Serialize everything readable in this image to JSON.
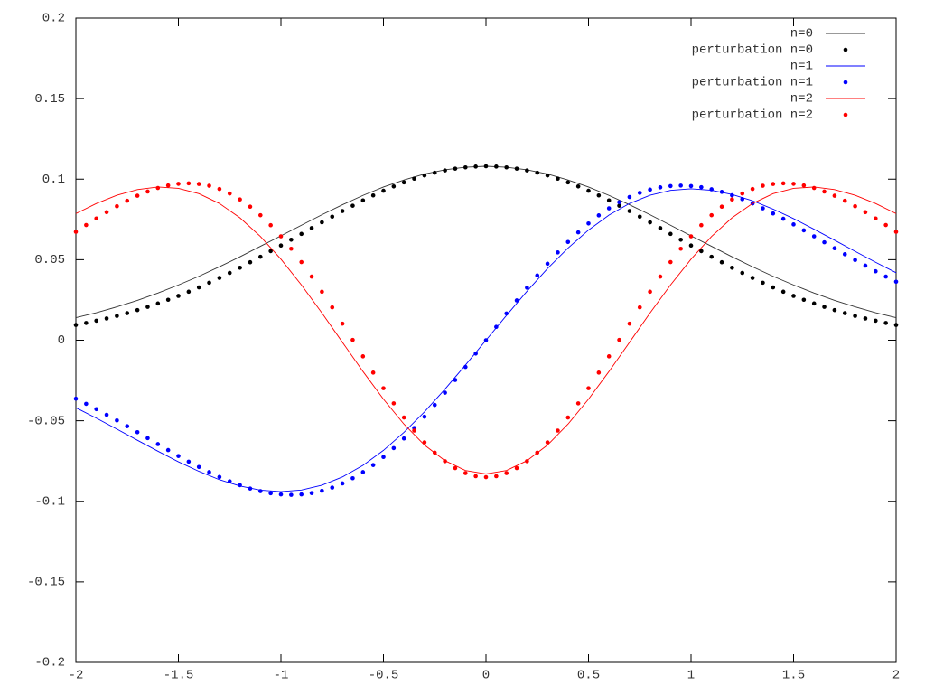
{
  "chart_data": {
    "type": "line",
    "xlim": [
      -2,
      2
    ],
    "ylim": [
      -0.2,
      0.2
    ],
    "xticks": [
      -2,
      -1.5,
      -1,
      -0.5,
      0,
      0.5,
      1,
      1.5,
      2
    ],
    "yticks": [
      -0.2,
      -0.15,
      -0.1,
      -0.05,
      0,
      0.05,
      0.1,
      0.15,
      0.2
    ],
    "grid": false,
    "legend": "top right",
    "series": [
      {
        "name": "n=0",
        "color": "#333333",
        "style": "line",
        "x": [
          -2,
          -1.9,
          -1.8,
          -1.7,
          -1.6,
          -1.5,
          -1.4,
          -1.3,
          -1.2,
          -1.1,
          -1,
          -0.9,
          -0.8,
          -0.7,
          -0.6,
          -0.5,
          -0.4,
          -0.3,
          -0.2,
          -0.1,
          0,
          0.1,
          0.2,
          0.3,
          0.4,
          0.5,
          0.6,
          0.7,
          0.8,
          0.9,
          1,
          1.1,
          1.2,
          1.3,
          1.4,
          1.5,
          1.6,
          1.7,
          1.8,
          1.9,
          2
        ],
        "values": [
          0.014,
          0.0171,
          0.0207,
          0.0247,
          0.0293,
          0.0343,
          0.0397,
          0.0456,
          0.0518,
          0.0583,
          0.0648,
          0.0714,
          0.0779,
          0.0841,
          0.0899,
          0.0951,
          0.0995,
          0.1032,
          0.1058,
          0.1074,
          0.108,
          0.1074,
          0.1058,
          0.1032,
          0.0995,
          0.0951,
          0.0899,
          0.0841,
          0.0779,
          0.0714,
          0.0648,
          0.0583,
          0.0518,
          0.0456,
          0.0397,
          0.0343,
          0.0293,
          0.0247,
          0.0207,
          0.0171,
          0.014
        ]
      },
      {
        "name": "perturbation n=0",
        "color": "#000000",
        "style": "points",
        "x": [
          -2,
          -1.95,
          -1.9,
          -1.85,
          -1.8,
          -1.75,
          -1.7,
          -1.65,
          -1.6,
          -1.55,
          -1.5,
          -1.45,
          -1.4,
          -1.35,
          -1.3,
          -1.25,
          -1.2,
          -1.15,
          -1.1,
          -1.05,
          -1,
          -0.95,
          -0.9,
          -0.85,
          -0.8,
          -0.75,
          -0.7,
          -0.65,
          -0.6,
          -0.55,
          -0.5,
          -0.45,
          -0.4,
          -0.35,
          -0.3,
          -0.25,
          -0.2,
          -0.15,
          -0.1,
          -0.05,
          0,
          0.05,
          0.1,
          0.15,
          0.2,
          0.25,
          0.3,
          0.35,
          0.4,
          0.45,
          0.5,
          0.55,
          0.6,
          0.65,
          0.7,
          0.75,
          0.8,
          0.85,
          0.9,
          0.95,
          1,
          1.05,
          1.1,
          1.15,
          1.2,
          1.25,
          1.3,
          1.35,
          1.4,
          1.45,
          1.5,
          1.55,
          1.6,
          1.65,
          1.7,
          1.75,
          1.8,
          1.85,
          1.9,
          1.95,
          2
        ],
        "values": [
          0.0095,
          0.0107,
          0.0121,
          0.0135,
          0.0151,
          0.0168,
          0.0187,
          0.0207,
          0.0228,
          0.0251,
          0.0275,
          0.0301,
          0.0328,
          0.0357,
          0.0387,
          0.0418,
          0.045,
          0.0484,
          0.0518,
          0.0553,
          0.0588,
          0.0624,
          0.066,
          0.0696,
          0.0732,
          0.0767,
          0.0802,
          0.0835,
          0.0868,
          0.0899,
          0.0928,
          0.0955,
          0.098,
          0.1003,
          0.1023,
          0.104,
          0.1054,
          0.1065,
          0.1073,
          0.1078,
          0.108,
          0.1078,
          0.1073,
          0.1065,
          0.1054,
          0.104,
          0.1023,
          0.1003,
          0.098,
          0.0955,
          0.0928,
          0.0899,
          0.0868,
          0.0835,
          0.0802,
          0.0767,
          0.0732,
          0.0696,
          0.066,
          0.0624,
          0.0588,
          0.0553,
          0.0518,
          0.0484,
          0.045,
          0.0418,
          0.0387,
          0.0357,
          0.0328,
          0.0301,
          0.0275,
          0.0251,
          0.0228,
          0.0207,
          0.0187,
          0.0168,
          0.0151,
          0.0135,
          0.0121,
          0.0107,
          0.0095
        ]
      },
      {
        "name": "n=1",
        "color": "#0000ff",
        "style": "line",
        "x": [
          -2,
          -1.9,
          -1.8,
          -1.7,
          -1.6,
          -1.5,
          -1.4,
          -1.3,
          -1.2,
          -1.1,
          -1,
          -0.9,
          -0.8,
          -0.7,
          -0.6,
          -0.5,
          -0.4,
          -0.3,
          -0.2,
          -0.1,
          0,
          0.1,
          0.2,
          0.3,
          0.4,
          0.5,
          0.6,
          0.7,
          0.8,
          0.9,
          1,
          1.1,
          1.2,
          1.3,
          1.4,
          1.5,
          1.6,
          1.7,
          1.8,
          1.9,
          2
        ],
        "values": [
          -0.0419,
          -0.0484,
          -0.0552,
          -0.0621,
          -0.0689,
          -0.0755,
          -0.0814,
          -0.0866,
          -0.0905,
          -0.0931,
          -0.094,
          -0.093,
          -0.09,
          -0.0849,
          -0.0777,
          -0.0684,
          -0.0572,
          -0.0445,
          -0.0304,
          -0.0154,
          0,
          0.0154,
          0.0304,
          0.0445,
          0.0572,
          0.0684,
          0.0777,
          0.0849,
          0.09,
          0.093,
          0.094,
          0.0931,
          0.0905,
          0.0866,
          0.0814,
          0.0755,
          0.0689,
          0.0621,
          0.0552,
          0.0484,
          0.0419
        ]
      },
      {
        "name": "perturbation n=1",
        "color": "#0000ff",
        "style": "points",
        "x": [
          -2,
          -1.95,
          -1.9,
          -1.85,
          -1.8,
          -1.75,
          -1.7,
          -1.65,
          -1.6,
          -1.55,
          -1.5,
          -1.45,
          -1.4,
          -1.35,
          -1.3,
          -1.25,
          -1.2,
          -1.15,
          -1.1,
          -1.05,
          -1,
          -0.95,
          -0.9,
          -0.85,
          -0.8,
          -0.75,
          -0.7,
          -0.65,
          -0.6,
          -0.55,
          -0.5,
          -0.45,
          -0.4,
          -0.35,
          -0.3,
          -0.25,
          -0.2,
          -0.15,
          -0.1,
          -0.05,
          0,
          0.05,
          0.1,
          0.15,
          0.2,
          0.25,
          0.3,
          0.35,
          0.4,
          0.45,
          0.5,
          0.55,
          0.6,
          0.65,
          0.7,
          0.75,
          0.8,
          0.85,
          0.9,
          0.95,
          1,
          1.05,
          1.1,
          1.15,
          1.2,
          1.25,
          1.3,
          1.35,
          1.4,
          1.45,
          1.5,
          1.55,
          1.6,
          1.65,
          1.7,
          1.75,
          1.8,
          1.85,
          1.9,
          1.95,
          2
        ],
        "values": [
          -0.0363,
          -0.0395,
          -0.0428,
          -0.0463,
          -0.0498,
          -0.0534,
          -0.0571,
          -0.0608,
          -0.0645,
          -0.0682,
          -0.0719,
          -0.0754,
          -0.0787,
          -0.0819,
          -0.0849,
          -0.0876,
          -0.09,
          -0.0921,
          -0.0937,
          -0.095,
          -0.0957,
          -0.096,
          -0.0957,
          -0.0949,
          -0.0935,
          -0.0915,
          -0.0889,
          -0.0857,
          -0.0819,
          -0.0775,
          -0.0725,
          -0.067,
          -0.061,
          -0.0545,
          -0.0475,
          -0.0402,
          -0.0326,
          -0.0247,
          -0.0166,
          -0.0083,
          0,
          0.0083,
          0.0166,
          0.0247,
          0.0326,
          0.0402,
          0.0475,
          0.0545,
          0.061,
          0.067,
          0.0725,
          0.0775,
          0.0819,
          0.0857,
          0.0889,
          0.0915,
          0.0935,
          0.0949,
          0.0957,
          0.096,
          0.0957,
          0.095,
          0.0937,
          0.0921,
          0.09,
          0.0876,
          0.0849,
          0.0819,
          0.0787,
          0.0754,
          0.0719,
          0.0682,
          0.0645,
          0.0608,
          0.0571,
          0.0534,
          0.0498,
          0.0463,
          0.0428,
          0.0395,
          0.0363
        ]
      },
      {
        "name": "n=2",
        "color": "#ff0000",
        "style": "line",
        "x": [
          -2,
          -1.9,
          -1.8,
          -1.7,
          -1.6,
          -1.5,
          -1.4,
          -1.3,
          -1.2,
          -1.1,
          -1,
          -0.9,
          -0.8,
          -0.7,
          -0.6,
          -0.5,
          -0.4,
          -0.3,
          -0.2,
          -0.1,
          0,
          0.1,
          0.2,
          0.3,
          0.4,
          0.5,
          0.6,
          0.7,
          0.8,
          0.9,
          1,
          1.1,
          1.2,
          1.3,
          1.4,
          1.5,
          1.6,
          1.7,
          1.8,
          1.9,
          2
        ],
        "values": [
          0.0786,
          0.0849,
          0.09,
          0.0935,
          0.0951,
          0.0943,
          0.091,
          0.0849,
          0.076,
          0.0644,
          0.0503,
          0.0343,
          0.0169,
          -0.0013,
          -0.0194,
          -0.0366,
          -0.0521,
          -0.0651,
          -0.0748,
          -0.0809,
          -0.083,
          -0.0809,
          -0.0748,
          -0.0651,
          -0.0521,
          -0.0366,
          -0.0194,
          -0.0013,
          0.0169,
          0.0343,
          0.0503,
          0.0644,
          0.076,
          0.0849,
          0.091,
          0.0943,
          0.0951,
          0.0935,
          0.09,
          0.0849,
          0.0786
        ]
      },
      {
        "name": "perturbation n=2",
        "color": "#ff0000",
        "style": "points",
        "x": [
          -2,
          -1.95,
          -1.9,
          -1.85,
          -1.8,
          -1.75,
          -1.7,
          -1.65,
          -1.6,
          -1.55,
          -1.5,
          -1.45,
          -1.4,
          -1.35,
          -1.3,
          -1.25,
          -1.2,
          -1.15,
          -1.1,
          -1.05,
          -1,
          -0.95,
          -0.9,
          -0.85,
          -0.8,
          -0.75,
          -0.7,
          -0.65,
          -0.6,
          -0.55,
          -0.5,
          -0.45,
          -0.4,
          -0.35,
          -0.3,
          -0.25,
          -0.2,
          -0.15,
          -0.1,
          -0.05,
          0,
          0.05,
          0.1,
          0.15,
          0.2,
          0.25,
          0.3,
          0.35,
          0.4,
          0.45,
          0.5,
          0.55,
          0.6,
          0.65,
          0.7,
          0.75,
          0.8,
          0.85,
          0.9,
          0.95,
          1,
          1.05,
          1.1,
          1.15,
          1.2,
          1.25,
          1.3,
          1.35,
          1.4,
          1.45,
          1.5,
          1.55,
          1.6,
          1.65,
          1.7,
          1.75,
          1.8,
          1.85,
          1.9,
          1.95,
          2
        ],
        "values": [
          0.0673,
          0.0715,
          0.0756,
          0.0795,
          0.0832,
          0.0866,
          0.0897,
          0.0923,
          0.0945,
          0.0961,
          0.0971,
          0.0974,
          0.097,
          0.0959,
          0.0939,
          0.0911,
          0.0874,
          0.0829,
          0.0776,
          0.0714,
          0.0645,
          0.0568,
          0.0485,
          0.0395,
          0.0301,
          0.0204,
          0.0103,
          0.0002,
          -0.01,
          -0.0201,
          -0.0298,
          -0.0392,
          -0.048,
          -0.0561,
          -0.0634,
          -0.0698,
          -0.0751,
          -0.0794,
          -0.0825,
          -0.0844,
          -0.085,
          -0.0844,
          -0.0825,
          -0.0794,
          -0.0751,
          -0.0698,
          -0.0634,
          -0.0561,
          -0.048,
          -0.0392,
          -0.0298,
          -0.0201,
          -0.01,
          0.0002,
          0.0103,
          0.0204,
          0.0301,
          0.0395,
          0.0485,
          0.0568,
          0.0645,
          0.0714,
          0.0776,
          0.0829,
          0.0874,
          0.0911,
          0.0939,
          0.0959,
          0.097,
          0.0974,
          0.0971,
          0.0961,
          0.0945,
          0.0923,
          0.0897,
          0.0866,
          0.0832,
          0.0795,
          0.0756,
          0.0715,
          0.0673
        ]
      }
    ]
  }
}
